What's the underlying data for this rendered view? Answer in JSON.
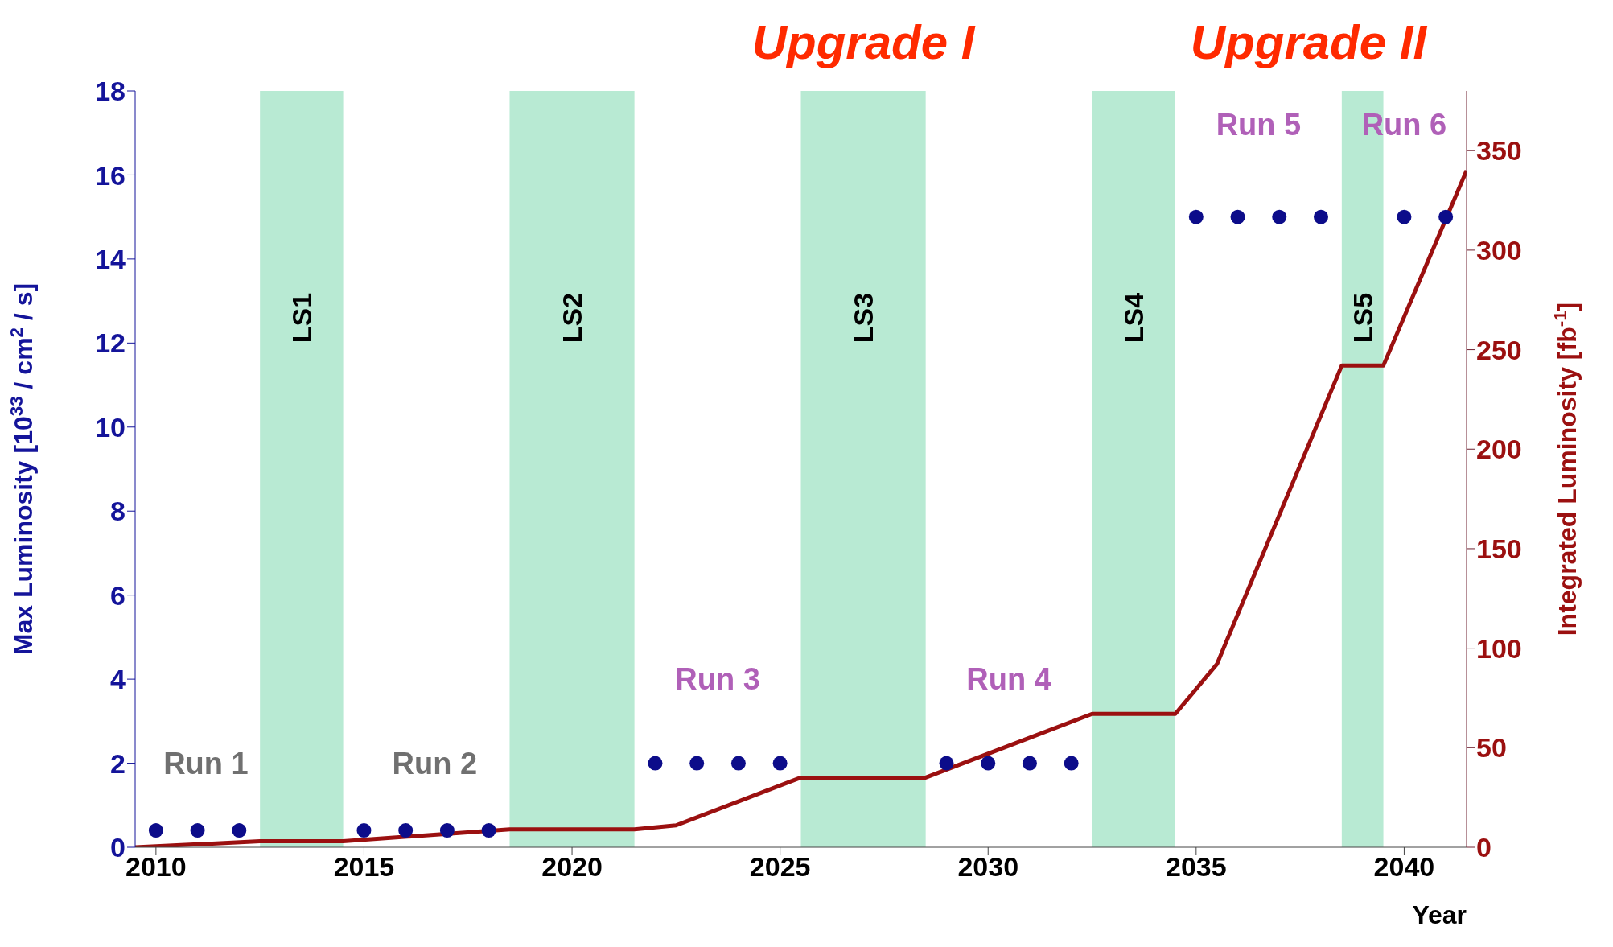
{
  "chart_data": {
    "type": "scatter",
    "xlabel": "Year",
    "ylabel": "Max Luminosity [10$^{33}$ / cm$^{2}$ / s]",
    "y2label": "Integrated Luminosity [fb$^{-1}$]",
    "series": [
      {
        "marker": "circle",
        "color": "#0c0c8a",
        "x": [
          2010,
          2011,
          2012,
          2015,
          2016,
          2017,
          2018,
          2022,
          2023,
          2024,
          2025,
          2029,
          2030,
          2031,
          2032,
          2035,
          2036,
          2037,
          2038,
          2040,
          2041
        ],
        "values": [
          0.4,
          0.4,
          0.4,
          0.4,
          0.4,
          0.4,
          0.4,
          2,
          2,
          2,
          2,
          2,
          2,
          2,
          2,
          15,
          15,
          15,
          15,
          15,
          15
        ]
      },
      {
        "type": "line",
        "axis": "y2",
        "color": "#9b1010",
        "x": [
          2009.5,
          2012.5,
          2014.5,
          2018.5,
          2021.5,
          2022.5,
          2025.5,
          2028.5,
          2032.5,
          2034.5,
          2035.5,
          2038.5,
          2039.5,
          2041.5
        ],
        "values": [
          0,
          3,
          3,
          9,
          9,
          11,
          35,
          35,
          67,
          67,
          92,
          242,
          242,
          340
        ]
      }
    ],
    "xlim": [
      2009.5,
      2041.5
    ],
    "xticks": [
      2010,
      2015,
      2020,
      2025,
      2030,
      2035,
      2040
    ],
    "ylim": [
      0,
      18
    ],
    "yticks": [
      0,
      2,
      4,
      6,
      8,
      10,
      12,
      14,
      16,
      18
    ],
    "y2lim": [
      0,
      380
    ],
    "y2ticks": [
      0,
      50,
      100,
      150,
      200,
      250,
      300,
      350
    ],
    "bands": [
      {
        "axis": "x",
        "from": 2012.5,
        "to": 2014.5,
        "label": "LS1",
        "color": "#b8ead3"
      },
      {
        "axis": "x",
        "from": 2018.5,
        "to": 2021.5,
        "label": "LS2",
        "color": "#b8ead3"
      },
      {
        "axis": "x",
        "from": 2025.5,
        "to": 2028.5,
        "label": "LS3",
        "color": "#b8ead3"
      },
      {
        "axis": "x",
        "from": 2032.5,
        "to": 2034.5,
        "label": "LS4",
        "color": "#b8ead3"
      },
      {
        "axis": "x",
        "from": 2038.5,
        "to": 2039.5,
        "label": "LS5",
        "color": "#b8ead3"
      }
    ],
    "annotations": [
      "Run 1",
      "Run 2",
      "Run 3",
      "Run 4",
      "Run 5",
      "Run 6",
      "Upgrade I",
      "Upgrade II"
    ]
  }
}
